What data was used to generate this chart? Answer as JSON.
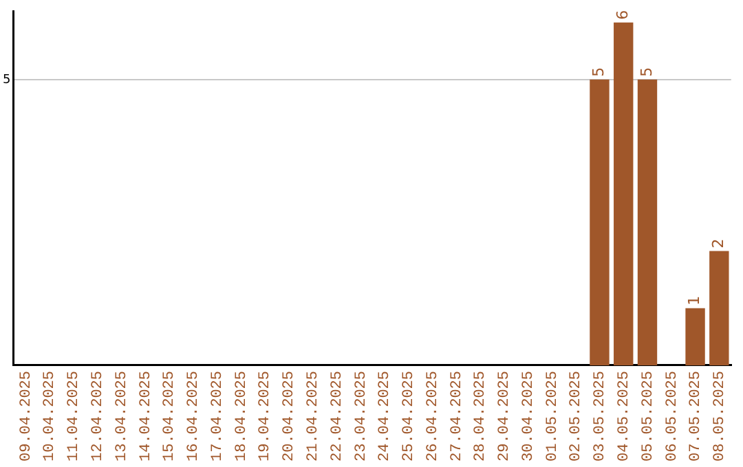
{
  "chart_data": {
    "type": "bar",
    "categories": [
      "09.04.2025",
      "10.04.2025",
      "11.04.2025",
      "12.04.2025",
      "13.04.2025",
      "14.04.2025",
      "15.04.2025",
      "16.04.2025",
      "17.04.2025",
      "18.04.2025",
      "19.04.2025",
      "20.04.2025",
      "21.04.2025",
      "22.04.2025",
      "23.04.2025",
      "24.04.2025",
      "25.04.2025",
      "26.04.2025",
      "27.04.2025",
      "28.04.2025",
      "29.04.2025",
      "30.04.2025",
      "01.05.2025",
      "02.05.2025",
      "03.05.2025",
      "04.05.2025",
      "05.05.2025",
      "06.05.2025",
      "07.05.2025",
      "08.05.2025"
    ],
    "values": [
      null,
      null,
      null,
      null,
      null,
      null,
      null,
      null,
      null,
      null,
      null,
      null,
      null,
      null,
      null,
      null,
      null,
      null,
      null,
      null,
      null,
      null,
      null,
      null,
      5,
      6,
      5,
      null,
      1,
      2
    ],
    "value_labels": [
      null,
      null,
      null,
      null,
      null,
      null,
      null,
      null,
      null,
      null,
      null,
      null,
      null,
      null,
      null,
      null,
      null,
      null,
      null,
      null,
      null,
      null,
      null,
      null,
      "5",
      "6",
      "5",
      null,
      "1",
      "2"
    ],
    "color": "#a0572a",
    "ylim": [
      0,
      6.2
    ],
    "yticks": [
      5
    ],
    "grid": "y",
    "legend": false
  }
}
